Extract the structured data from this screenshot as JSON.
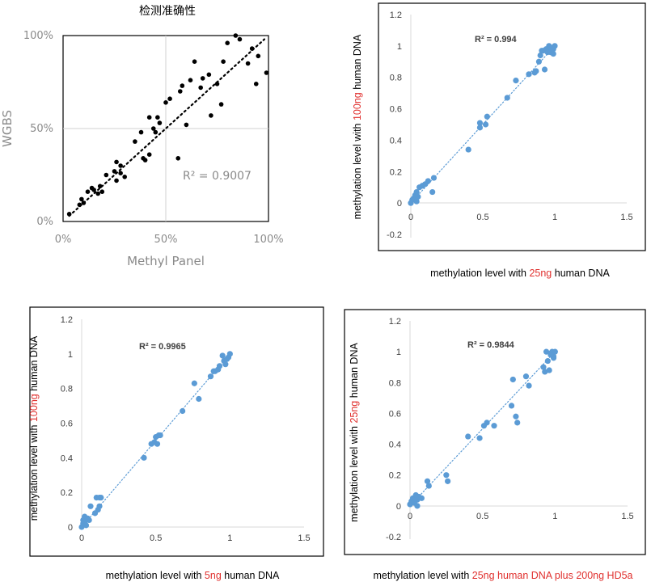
{
  "chart_data": [
    {
      "id": "p1",
      "type": "scatter",
      "title": "检测准确性",
      "xlabel": "Methyl Panel",
      "ylabel": "WGBS",
      "x_ticks": [
        "0%",
        "50%",
        "100%"
      ],
      "y_ticks": [
        "0%",
        "50%",
        "100%"
      ],
      "xlim": [
        0,
        1
      ],
      "ylim": [
        0,
        1
      ],
      "grid": "mid-lines",
      "r2_label": "R² = 0.9007",
      "trendline": "dotted-black",
      "marker_color": "#000000",
      "x": [
        0.03,
        0.08,
        0.09,
        0.1,
        0.12,
        0.14,
        0.15,
        0.17,
        0.18,
        0.19,
        0.21,
        0.25,
        0.26,
        0.26,
        0.28,
        0.28,
        0.3,
        0.38,
        0.39,
        0.4,
        0.42,
        0.42,
        0.44,
        0.45,
        0.46,
        0.47,
        0.5,
        0.52,
        0.57,
        0.58,
        0.6,
        0.62,
        0.64,
        0.67,
        0.68,
        0.71,
        0.72,
        0.75,
        0.77,
        0.78,
        0.8,
        0.84,
        0.86,
        0.9,
        0.92,
        0.94,
        0.95,
        0.99,
        0.35,
        0.56
      ],
      "y": [
        0.04,
        0.09,
        0.12,
        0.1,
        0.16,
        0.18,
        0.17,
        0.15,
        0.19,
        0.16,
        0.25,
        0.27,
        0.32,
        0.22,
        0.3,
        0.26,
        0.24,
        0.48,
        0.34,
        0.33,
        0.36,
        0.56,
        0.5,
        0.48,
        0.56,
        0.53,
        0.64,
        0.66,
        0.7,
        0.73,
        0.52,
        0.76,
        0.86,
        0.72,
        0.77,
        0.79,
        0.57,
        0.74,
        0.63,
        0.86,
        0.96,
        1.0,
        0.98,
        0.85,
        0.93,
        0.74,
        0.89,
        0.8,
        0.43,
        0.34
      ]
    },
    {
      "id": "p2",
      "type": "scatter",
      "xlabel_parts": [
        "methylation level with ",
        "25ng",
        " human DNA"
      ],
      "ylabel_parts": [
        "methylation level with ",
        "100ng",
        " human DNA"
      ],
      "x_ticks": [
        "0",
        "0.5",
        "1",
        "1.5"
      ],
      "y_ticks": [
        "-0.2",
        "0",
        "0.2",
        "0.4",
        "0.6",
        "0.8",
        "1",
        "1.2"
      ],
      "xlim": [
        0,
        1.5
      ],
      "ylim": [
        -0.2,
        1.2
      ],
      "r2_label": "R² = 0.994",
      "trendline": "dotted-blue",
      "marker_color": "#5b9bd5",
      "x": [
        0.0,
        0.01,
        0.02,
        0.03,
        0.04,
        0.04,
        0.05,
        0.06,
        0.08,
        0.1,
        0.12,
        0.15,
        0.16,
        0.4,
        0.48,
        0.48,
        0.52,
        0.53,
        0.67,
        0.73,
        0.82,
        0.86,
        0.87,
        0.89,
        0.9,
        0.91,
        0.92,
        0.93,
        0.94,
        0.95,
        0.96,
        0.97,
        0.98,
        0.99,
        1.0,
        0.99,
        0.97
      ],
      "y": [
        0.0,
        0.02,
        0.03,
        0.05,
        0.01,
        0.07,
        0.04,
        0.1,
        0.11,
        0.12,
        0.14,
        0.07,
        0.16,
        0.34,
        0.51,
        0.48,
        0.5,
        0.55,
        0.67,
        0.78,
        0.82,
        0.83,
        0.84,
        0.9,
        0.94,
        0.97,
        0.97,
        0.85,
        0.98,
        0.96,
        1.0,
        0.99,
        0.97,
        0.95,
        1.0,
        0.98,
        0.96
      ]
    },
    {
      "id": "p3",
      "type": "scatter",
      "xlabel_parts": [
        "methylation level with ",
        "5ng",
        " human DNA"
      ],
      "ylabel_parts": [
        "methylation level with ",
        "100ng",
        " human DNA"
      ],
      "x_ticks": [
        "0",
        "0.5",
        "1",
        "1.5"
      ],
      "y_ticks": [
        "0",
        "0.2",
        "0.4",
        "0.6",
        "0.8",
        "1",
        "1.2"
      ],
      "xlim": [
        0,
        1.5
      ],
      "ylim": [
        0,
        1.2
      ],
      "r2_label": "R² = 0.9965",
      "trendline": "dotted-blue",
      "marker_color": "#5b9bd5",
      "x": [
        0.0,
        0.01,
        0.01,
        0.02,
        0.02,
        0.03,
        0.03,
        0.04,
        0.05,
        0.06,
        0.09,
        0.1,
        0.11,
        0.12,
        0.12,
        0.13,
        0.42,
        0.47,
        0.49,
        0.5,
        0.51,
        0.52,
        0.53,
        0.68,
        0.76,
        0.79,
        0.87,
        0.89,
        0.9,
        0.92,
        0.93,
        0.95,
        0.96,
        0.97,
        0.98,
        0.99,
        1.0
      ],
      "y": [
        0.0,
        0.02,
        0.04,
        0.03,
        0.06,
        0.01,
        0.05,
        0.05,
        0.04,
        0.12,
        0.08,
        0.17,
        0.1,
        0.12,
        0.17,
        0.17,
        0.4,
        0.48,
        0.49,
        0.52,
        0.48,
        0.53,
        0.53,
        0.67,
        0.83,
        0.74,
        0.87,
        0.9,
        0.9,
        0.91,
        0.93,
        0.99,
        0.96,
        0.94,
        0.97,
        0.98,
        1.0
      ]
    },
    {
      "id": "p4",
      "type": "scatter",
      "xlabel_parts": [
        "methylation level with ",
        "25ng human DNA plus 200ng HD5a",
        ""
      ],
      "ylabel_parts": [
        "methylation level with ",
        "25ng",
        " human DNA"
      ],
      "x_ticks": [
        "0",
        "0.5",
        "1",
        "1.5"
      ],
      "y_ticks": [
        "-0.2",
        "0",
        "0.2",
        "0.4",
        "0.6",
        "0.8",
        "1",
        "1.2"
      ],
      "xlim": [
        0,
        1.5
      ],
      "ylim": [
        -0.2,
        1.2
      ],
      "r2_label": "R² = 0.9844",
      "trendline": "dotted-blue",
      "marker_color": "#5b9bd5",
      "x": [
        0.0,
        0.01,
        0.02,
        0.03,
        0.04,
        0.05,
        0.05,
        0.06,
        0.08,
        0.12,
        0.13,
        0.25,
        0.26,
        0.4,
        0.48,
        0.51,
        0.53,
        0.58,
        0.7,
        0.71,
        0.73,
        0.74,
        0.8,
        0.82,
        0.92,
        0.93,
        0.94,
        0.95,
        0.96,
        0.97,
        0.98,
        0.99,
        1.0,
        0.99,
        0.97
      ],
      "y": [
        0.01,
        0.03,
        0.05,
        0.02,
        0.07,
        0.04,
        0.0,
        0.06,
        0.05,
        0.16,
        0.13,
        0.2,
        0.16,
        0.45,
        0.44,
        0.52,
        0.54,
        0.52,
        0.65,
        0.82,
        0.58,
        0.54,
        0.84,
        0.78,
        0.9,
        0.87,
        1.0,
        0.94,
        0.88,
        0.99,
        1.0,
        0.97,
        1.0,
        0.96,
        0.98
      ]
    }
  ]
}
